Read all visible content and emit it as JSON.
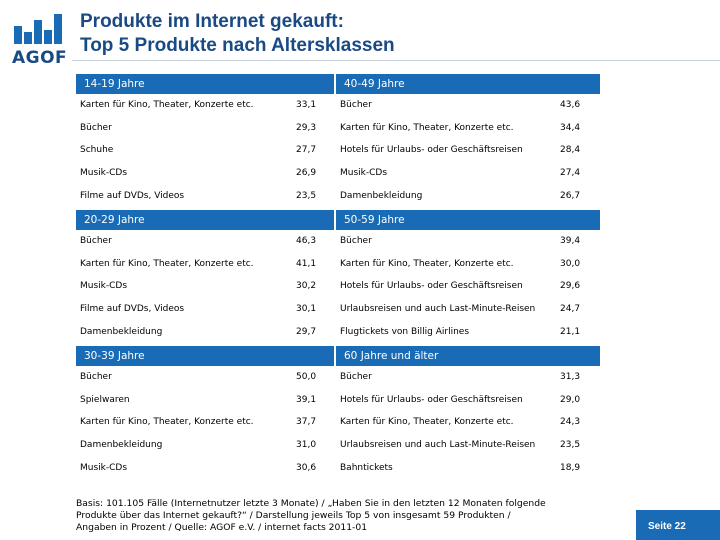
{
  "logo": {
    "text": "AGOF"
  },
  "title": {
    "line1": "Produkte im Internet gekauft:",
    "line2": "Top 5 Produkte nach Altersklassen"
  },
  "groups": [
    {
      "label": "14-19 Jahre",
      "rows": [
        {
          "name": "Karten für Kino, Theater,  Konzerte etc.",
          "value": "33,1"
        },
        {
          "name": "Bücher",
          "value": "29,3"
        },
        {
          "name": "Schuhe",
          "value": "27,7"
        },
        {
          "name": "Musik-CDs",
          "value": "26,9"
        },
        {
          "name": "Filme auf DVDs, Videos",
          "value": "23,5"
        }
      ]
    },
    {
      "label": "40-49 Jahre",
      "rows": [
        {
          "name": "Bücher",
          "value": "43,6"
        },
        {
          "name": "Karten für Kino, Theater,  Konzerte etc.",
          "value": "34,4"
        },
        {
          "name": "Hotels für Urlaubs- oder Geschäftsreisen",
          "value": "28,4"
        },
        {
          "name": "Musik-CDs",
          "value": "27,4"
        },
        {
          "name": "Damenbekleidung",
          "value": "26,7"
        }
      ]
    },
    {
      "label": "20-29 Jahre",
      "rows": [
        {
          "name": "Bücher",
          "value": "46,3"
        },
        {
          "name": "Karten für Kino, Theater,  Konzerte etc.",
          "value": "41,1"
        },
        {
          "name": "Musik-CDs",
          "value": "30,2"
        },
        {
          "name": "Filme auf DVDs, Videos",
          "value": "30,1"
        },
        {
          "name": "Damenbekleidung",
          "value": "29,7"
        }
      ]
    },
    {
      "label": "50-59 Jahre",
      "rows": [
        {
          "name": "Bücher",
          "value": "39,4"
        },
        {
          "name": "Karten für Kino, Theater,  Konzerte etc.",
          "value": "30,0"
        },
        {
          "name": "Hotels für Urlaubs- oder Geschäftsreisen",
          "value": "29,6"
        },
        {
          "name": "Urlaubsreisen und auch Last-Minute-Reisen",
          "value": "24,7"
        },
        {
          "name": "Flugtickets von Billig Airlines",
          "value": "21,1"
        }
      ]
    },
    {
      "label": "30-39 Jahre",
      "rows": [
        {
          "name": "Bücher",
          "value": "50,0"
        },
        {
          "name": "Spielwaren",
          "value": "39,1"
        },
        {
          "name": "Karten für Kino, Theater,  Konzerte etc.",
          "value": "37,7"
        },
        {
          "name": "Damenbekleidung",
          "value": "31,0"
        },
        {
          "name": "Musik-CDs",
          "value": "30,6"
        }
      ]
    },
    {
      "label": "60 Jahre und älter",
      "rows": [
        {
          "name": "Bücher",
          "value": "31,3"
        },
        {
          "name": "Hotels für Urlaubs- oder Geschäftsreisen",
          "value": "29,0"
        },
        {
          "name": "Karten für Kino, Theater,  Konzerte etc.",
          "value": "24,3"
        },
        {
          "name": "Urlaubsreisen und auch Last-Minute-Reisen",
          "value": "23,5"
        },
        {
          "name": "Bahntickets",
          "value": "18,9"
        }
      ]
    }
  ],
  "footnote": {
    "line1": "Basis: 101.105 Fälle (Internetnutzer letzte 3 Monate) / „Haben Sie in den letzten 12 Monaten folgende",
    "line2": "Produkte über das Internet gekauft?“ / Darstellung jeweils Top 5 von insgesamt 59 Produkten /",
    "line3": "Angaben in Prozent / Quelle: AGOF e.V. / internet facts 2011-01"
  },
  "page": {
    "label": "Seite 22"
  },
  "colors": {
    "brand": "#1a6bb5",
    "title": "#1a4a84"
  }
}
